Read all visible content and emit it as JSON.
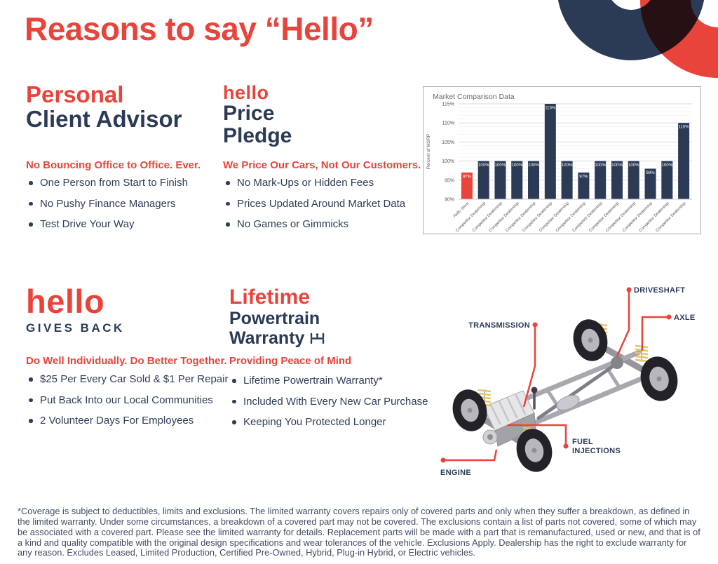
{
  "page": {
    "title": "Reasons to say “Hello”"
  },
  "colors": {
    "accent_red": "#E8443B",
    "navy": "#2B3A55",
    "body_text": "#2F3D55",
    "footer_text": "#414D63"
  },
  "sections": [
    {
      "id": "personal-client-advisor",
      "heading": [
        {
          "text": "Personal",
          "size": "xl",
          "color": "accent"
        },
        {
          "text": "Client Advisor",
          "size": "xl",
          "color": "navy"
        }
      ],
      "subtitle": "No Bouncing Office to Office. Ever.",
      "bullets": [
        "One Person from Start to Finish",
        "No Pushy Finance Managers",
        "Test Drive Your Way"
      ]
    },
    {
      "id": "hello-price-pledge",
      "heading": [
        {
          "text": "hello",
          "size": "logo-sm",
          "color": "accent"
        },
        {
          "text": "Price",
          "size": "lg",
          "color": "navy"
        },
        {
          "text": "Pledge",
          "size": "lg",
          "color": "navy"
        }
      ],
      "subtitle": "We Price Our Cars, Not Our Customers.",
      "bullets": [
        "No Mark-Ups or Hidden Fees",
        "Prices Updated Around Market Data",
        "No Games or Gimmicks"
      ]
    },
    {
      "id": "hello-gives-back",
      "heading": [
        {
          "text": "hello",
          "size": "logo-xl",
          "color": "accent"
        },
        {
          "text": "GIVES BACK",
          "size": "caps",
          "color": "navy"
        }
      ],
      "subtitle": "Do Well Individually. Do Better Together.",
      "bullets": [
        "$25 Per Every Car Sold & $1 Per Repair",
        "Put Back Into our Local Communities",
        "2 Volunteer Days For Employees"
      ]
    },
    {
      "id": "lifetime-powertrain-warranty",
      "heading": [
        {
          "text": "Lifetime",
          "size": "lg",
          "color": "accent"
        },
        {
          "text": "Powertrain",
          "size": "md",
          "color": "navy"
        },
        {
          "text": "Warranty",
          "size": "md",
          "color": "navy",
          "icon": "chassis-icon"
        }
      ],
      "subtitle": "Providing Peace of Mind",
      "bullets": [
        "Lifetime Powertrain Warranty*",
        "Included With Every New Car Purchase",
        "Keeping You Protected Longer"
      ]
    }
  ],
  "chart_data": {
    "type": "bar",
    "title": "Market Comparison Data",
    "xlabel": "",
    "ylabel": "Percent of MSRP",
    "ylim": [
      90,
      115
    ],
    "yticks": [
      "90%",
      "95%",
      "100%",
      "105%",
      "110%",
      "115%"
    ],
    "grid": true,
    "legend": false,
    "categories": [
      "Hello Store",
      "Competitor Dealership",
      "Competitor Dealership",
      "Competitor Dealership",
      "Competitor Dealership",
      "Competitor Dealership",
      "Competitor Dealership",
      "Competitor Dealership",
      "Competitor Dealership",
      "Competitor Dealership",
      "Competitor Dealership",
      "Competitor Dealership",
      "Competitor Dealership",
      "Competitor Dealership"
    ],
    "values": [
      97,
      100,
      100,
      100,
      100,
      115,
      100,
      97,
      100,
      100,
      100,
      98,
      100,
      110
    ],
    "bar_labels": [
      "97%",
      "100%",
      "100%",
      "100%",
      "100%",
      "115%",
      "100%",
      "97%",
      "100%",
      "100%",
      "100%",
      "98%",
      "100%",
      "110%"
    ],
    "highlight_index": 0,
    "bar_color": "#2B3A55",
    "highlight_color": "#E8443B"
  },
  "diagram": {
    "callouts": [
      {
        "id": "driveshaft",
        "label": "DRIVESHAFT"
      },
      {
        "id": "axle",
        "label": "AXLE"
      },
      {
        "id": "transmission",
        "label": "TRANSMISSION"
      },
      {
        "id": "fuel_injections",
        "label": "FUEL INJECTIONS"
      },
      {
        "id": "engine",
        "label": "ENGINE"
      }
    ]
  },
  "footer": {
    "disclaimer": "*Coverage is subject to deductibles, limits and exclusions. The limited warranty covers repairs only of covered parts and only when they suffer a breakdown, as defined in the limited warranty. Under some circumstances, a breakdown of a covered part may not be covered. The exclusions contain a list of parts not covered, some of which may be associated with a covered part. Please see the limited warranty for details. Replacement parts will be made with a part that is remanufactured, used or new, and that is of a kind and quality compatible with the original design specifications and wear tolerances of the vehicle. Exclusions Apply. Dealership has the right to exclude warranty for any reason. Excludes Leased, Limited Production, Certified Pre-Owned, Hybrid, Plug-in Hybrid, or Electric vehicles."
  }
}
